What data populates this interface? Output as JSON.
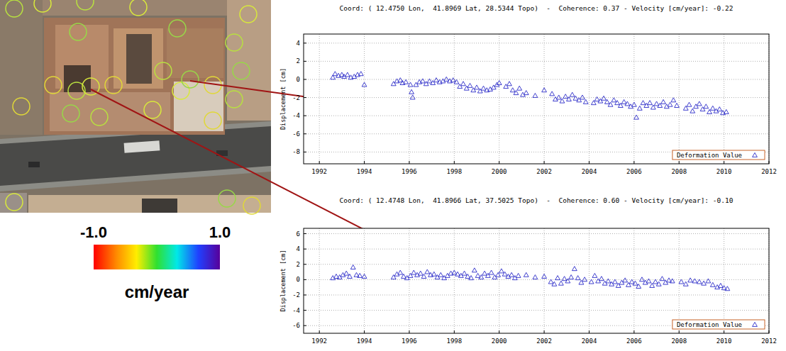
{
  "chart_data": [
    {
      "type": "scatter",
      "title": "Coord: ( 12.4750 Lon,  41.8969 Lat, 28.5344 Topo)  -  Coherence: 0.37 - Velocity [cm/year]: -0.22",
      "ylabel": "Displacement [cm]",
      "xlim": [
        1991.3,
        2012
      ],
      "xticks": [
        1992,
        1994,
        1996,
        1998,
        2000,
        2002,
        2004,
        2006,
        2008,
        2010,
        2012
      ],
      "ylim": [
        -9.3,
        5
      ],
      "yticks": [
        -8,
        -6,
        -4,
        -2,
        0,
        2,
        4
      ],
      "grid": true,
      "legend": "bottom-right",
      "x": [
        1992.6,
        1992.7,
        1992.85,
        1993.0,
        1993.1,
        1993.25,
        1993.4,
        1993.55,
        1993.7,
        1993.85,
        1994.0,
        1995.3,
        1995.45,
        1995.6,
        1995.7,
        1995.85,
        1996.05,
        1996.1,
        1996.15,
        1996.3,
        1996.45,
        1996.6,
        1996.75,
        1996.9,
        1997.05,
        1997.2,
        1997.35,
        1997.5,
        1997.65,
        1997.8,
        1997.95,
        1998.1,
        1998.25,
        1998.4,
        1998.55,
        1998.7,
        1998.85,
        1999.0,
        1999.15,
        1999.3,
        1999.45,
        1999.6,
        1999.75,
        1999.9,
        2000.0,
        2000.3,
        2000.45,
        2000.6,
        2000.75,
        2000.9,
        2001.05,
        2001.2,
        2001.6,
        2002.0,
        2002.35,
        2002.5,
        2002.65,
        2002.8,
        2002.95,
        2003.1,
        2003.25,
        2003.4,
        2003.55,
        2003.7,
        2003.85,
        2004.2,
        2004.35,
        2004.5,
        2004.65,
        2004.8,
        2004.95,
        2005.1,
        2005.25,
        2005.4,
        2005.55,
        2005.7,
        2005.85,
        2006.0,
        2006.1,
        2006.25,
        2006.4,
        2006.55,
        2006.7,
        2006.85,
        2007.0,
        2007.15,
        2007.3,
        2007.45,
        2007.6,
        2007.75,
        2007.9,
        2008.3,
        2008.45,
        2008.6,
        2008.75,
        2008.9,
        2009.05,
        2009.2,
        2009.35,
        2009.5,
        2009.65,
        2009.8,
        2009.95,
        2010.1
      ],
      "series": [
        {
          "name": "Deformation Value",
          "color": "#2c2cc8",
          "marker": "triangle",
          "values": [
            0.2,
            0.6,
            0.4,
            0.5,
            0.3,
            0.5,
            0.2,
            0.3,
            0.5,
            0.6,
            -0.6,
            -0.5,
            -0.2,
            -0.1,
            -0.4,
            -0.3,
            -0.6,
            -1.4,
            -2.0,
            -0.6,
            -0.3,
            -0.2,
            -0.5,
            -0.2,
            -0.4,
            -0.1,
            -0.3,
            -0.2,
            0.0,
            -0.2,
            -0.1,
            -0.3,
            -0.8,
            -0.5,
            -1.0,
            -0.7,
            -1.2,
            -0.9,
            -1.3,
            -1.0,
            -1.2,
            -1.1,
            -0.9,
            -0.6,
            -0.4,
            -0.8,
            -0.5,
            -1.2,
            -1.5,
            -1.0,
            -1.7,
            -1.5,
            -1.8,
            -1.2,
            -1.6,
            -2.2,
            -2.0,
            -2.4,
            -1.9,
            -2.2,
            -1.7,
            -2.1,
            -2.3,
            -2.0,
            -2.5,
            -2.6,
            -2.2,
            -2.4,
            -2.1,
            -2.5,
            -2.8,
            -2.3,
            -2.6,
            -2.9,
            -2.5,
            -2.7,
            -3.0,
            -2.8,
            -4.2,
            -3.2,
            -2.6,
            -2.9,
            -2.6,
            -3.1,
            -2.7,
            -2.9,
            -2.5,
            -3.0,
            -2.8,
            -2.3,
            -2.9,
            -3.2,
            -2.8,
            -3.5,
            -3.0,
            -2.7,
            -3.3,
            -3.0,
            -3.6,
            -3.2,
            -3.5,
            -3.3,
            -3.7,
            -3.6
          ]
        }
      ]
    },
    {
      "type": "scatter",
      "title": "Coord: ( 12.4748 Lon,  41.8966 Lat, 37.5025 Topo)  -  Coherence: 0.60 - Velocity [cm/year]: -0.10",
      "ylabel": "Displacement [cm]",
      "xlim": [
        1991.3,
        2012
      ],
      "xticks": [
        1992,
        1994,
        1996,
        1998,
        2000,
        2002,
        2004,
        2006,
        2008,
        2010,
        2012
      ],
      "ylim": [
        -7,
        6.7
      ],
      "yticks": [
        -6,
        -4,
        -2,
        0,
        2,
        4,
        6
      ],
      "grid": true,
      "legend": "bottom-right",
      "x": [
        1992.6,
        1992.75,
        1992.9,
        1993.05,
        1993.2,
        1993.35,
        1993.5,
        1993.65,
        1993.8,
        1994.0,
        1995.3,
        1995.45,
        1995.6,
        1995.75,
        1995.9,
        1996.05,
        1996.2,
        1996.35,
        1996.5,
        1996.65,
        1996.8,
        1996.95,
        1997.1,
        1997.25,
        1997.4,
        1997.55,
        1997.7,
        1997.85,
        1998.0,
        1998.15,
        1998.3,
        1998.45,
        1998.6,
        1998.75,
        1998.9,
        1999.05,
        1999.2,
        1999.35,
        1999.5,
        1999.65,
        1999.8,
        1999.95,
        2000.1,
        2000.25,
        2000.4,
        2000.55,
        2000.7,
        2000.85,
        2001.2,
        2001.6,
        2002.0,
        2002.3,
        2002.45,
        2002.6,
        2002.75,
        2002.9,
        2003.05,
        2003.2,
        2003.35,
        2003.5,
        2003.65,
        2003.8,
        2004.1,
        2004.25,
        2004.4,
        2004.55,
        2004.7,
        2004.85,
        2005.0,
        2005.15,
        2005.3,
        2005.45,
        2005.6,
        2005.75,
        2005.9,
        2006.05,
        2006.2,
        2006.35,
        2006.5,
        2006.65,
        2006.8,
        2006.95,
        2007.1,
        2007.25,
        2007.4,
        2007.55,
        2007.7,
        2008.1,
        2008.3,
        2008.5,
        2008.7,
        2008.9,
        2009.1,
        2009.3,
        2009.5,
        2009.7,
        2009.85,
        2010.0,
        2010.15
      ],
      "series": [
        {
          "name": "Deformation Value",
          "color": "#2c2cc8",
          "marker": "triangle",
          "values": [
            0.2,
            0.4,
            0.3,
            0.6,
            0.8,
            0.4,
            1.6,
            0.6,
            0.5,
            0.4,
            0.3,
            0.7,
            0.9,
            0.4,
            0.2,
            0.5,
            0.9,
            0.6,
            0.8,
            0.4,
            1.0,
            0.6,
            0.7,
            0.3,
            0.6,
            0.2,
            0.5,
            0.8,
            0.9,
            0.7,
            0.5,
            0.8,
            0.4,
            0.2,
            1.2,
            0.5,
            0.3,
            0.8,
            0.5,
            0.9,
            0.3,
            0.6,
            1.1,
            0.7,
            0.4,
            0.6,
            0.2,
            0.5,
            0.6,
            0.3,
            0.4,
            -0.3,
            -0.6,
            0.2,
            -0.5,
            0.1,
            -0.2,
            0.3,
            1.4,
            0.2,
            -0.4,
            0.0,
            -0.3,
            0.5,
            -0.2,
            0.1,
            -0.5,
            -0.2,
            -0.6,
            -0.3,
            -0.8,
            -0.4,
            -0.1,
            -0.7,
            -0.3,
            -0.5,
            -0.9,
            0.0,
            -0.4,
            -0.2,
            -0.8,
            -0.3,
            -0.6,
            0.1,
            -0.4,
            -0.1,
            -0.2,
            -0.3,
            -0.6,
            -0.1,
            -0.2,
            -0.3,
            -0.5,
            -0.2,
            -0.7,
            -1.0,
            -0.8,
            -1.1,
            -1.2
          ]
        }
      ]
    },
    {
      "type": "colorbar",
      "title": "cm/year",
      "xlim": [
        -1,
        1
      ],
      "xticks": [
        {
          "value": -1,
          "label": "-1.0"
        },
        {
          "value": 1,
          "label": "1.0"
        }
      ]
    }
  ]
}
